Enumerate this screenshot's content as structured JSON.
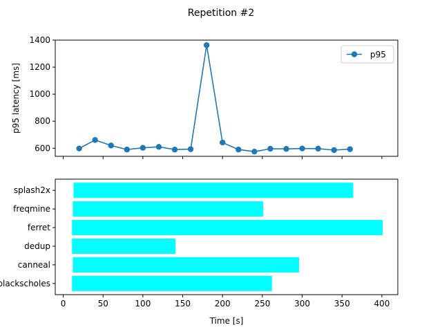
{
  "figure": {
    "title": "Repetition #2"
  },
  "colors": {
    "line": "#1f77b4",
    "bar": "#00ffff",
    "axes": "#000000",
    "background": "#ffffff"
  },
  "chart_data": [
    {
      "type": "line",
      "ylabel": "p95 latency [ms]",
      "xlabel": "",
      "xlim": [
        -10,
        420
      ],
      "ylim": [
        540,
        1400
      ],
      "yticks": [
        600,
        800,
        1000,
        1200,
        1400
      ],
      "xticks": [
        0,
        50,
        100,
        150,
        200,
        250,
        300,
        350,
        400
      ],
      "grid": false,
      "legend": "top-right",
      "series": [
        {
          "name": "p95",
          "marker": "circle",
          "x": [
            20,
            40,
            60,
            80,
            100,
            120,
            140,
            160,
            180,
            200,
            220,
            240,
            260,
            280,
            300,
            320,
            340,
            360
          ],
          "y": [
            598,
            661,
            620,
            590,
            603,
            610,
            590,
            593,
            1363,
            642,
            590,
            575,
            596,
            595,
            598,
            597,
            586,
            593
          ]
        }
      ]
    },
    {
      "type": "bar",
      "orientation": "horizontal",
      "xlabel": "Time [s]",
      "ylabel": "",
      "xlim": [
        -10,
        420
      ],
      "xticks": [
        0,
        50,
        100,
        150,
        200,
        250,
        300,
        350,
        400
      ],
      "xtick_labels": [
        "0",
        "50",
        "100",
        "150",
        "200",
        "250",
        "300",
        "350",
        "400"
      ],
      "grid": false,
      "categories": [
        "blackscholes",
        "canneal",
        "dedup",
        "ferret",
        "freqmine",
        "splash2x"
      ],
      "start": [
        11,
        12,
        11,
        11,
        12,
        13
      ],
      "end": [
        262,
        296,
        141,
        401,
        251,
        364
      ]
    }
  ]
}
